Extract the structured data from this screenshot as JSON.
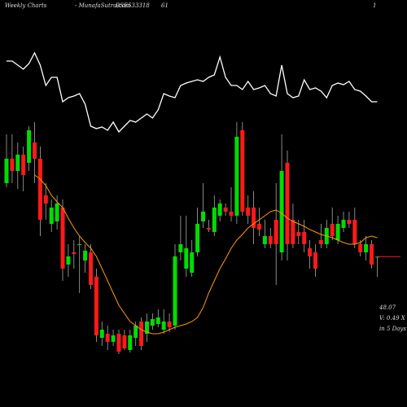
{
  "chart_data": {
    "type": "candlestick",
    "title": "Weekly Charts",
    "source": "- MunafaSutra.com",
    "symbol": "BSE533318",
    "annotations": [
      "61",
      "1"
    ],
    "info": [
      "48.07",
      "V: 0.49 X",
      "in 5 Days"
    ],
    "open": [
      57.1,
      60.1,
      58.6,
      60.6,
      59.6,
      62.1,
      60.1,
      55.6,
      52.1,
      52.4,
      54.1,
      47.1,
      48.6,
      49.6,
      47.6,
      48.6,
      45.6,
      38.1,
      38.6,
      37.6,
      38.6,
      38.4,
      36.6,
      38.1,
      40.1,
      38.6,
      39.6,
      39.8,
      39.1,
      40.1,
      39.6,
      48.6,
      46.6,
      46.1,
      48.6,
      52.4,
      51.6,
      51.1,
      53.1,
      54.1,
      53.6,
      53.1,
      63.6,
      54.1,
      54.1,
      52.1,
      49.6,
      50.6,
      52.6,
      48.6,
      59.6,
      52.6,
      51.1,
      51.1,
      49.1,
      48.6,
      50.1,
      49.6,
      52.1,
      50.1,
      51.6,
      52.6,
      52.6,
      49.6,
      48.6,
      49.6,
      48.07
    ],
    "high": [
      63.1,
      63.1,
      62.1,
      61.6,
      64.1,
      64.6,
      61.6,
      57.1,
      55.1,
      55.6,
      55.1,
      49.6,
      50.1,
      50.6,
      49.6,
      49.6,
      46.6,
      40.1,
      39.6,
      39.1,
      39.1,
      39.1,
      39.1,
      40.1,
      40.6,
      41.1,
      41.1,
      41.6,
      41.6,
      41.1,
      49.6,
      53.1,
      53.1,
      50.1,
      54.1,
      57.1,
      52.6,
      55.6,
      55.1,
      54.6,
      56.6,
      64.6,
      64.6,
      55.6,
      56.1,
      54.1,
      52.6,
      51.6,
      57.1,
      63.1,
      61.1,
      54.6,
      52.6,
      52.6,
      50.1,
      49.6,
      52.1,
      52.6,
      54.1,
      53.1,
      53.6,
      53.6,
      54.1,
      50.1,
      50.6,
      50.1,
      48.1
    ],
    "low": [
      56.6,
      57.1,
      56.4,
      56.1,
      58.6,
      57.1,
      50.6,
      52.6,
      51.1,
      51.4,
      45.1,
      45.6,
      46.6,
      43.6,
      46.1,
      44.1,
      37.6,
      37.1,
      36.6,
      37.1,
      36.1,
      36.6,
      36.3,
      37.1,
      36.6,
      37.6,
      39.1,
      39.4,
      38.6,
      38.8,
      39.1,
      47.6,
      45.6,
      45.6,
      48.1,
      51.6,
      51.1,
      50.6,
      52.4,
      53.1,
      52.4,
      52.1,
      53.1,
      52.1,
      49.6,
      50.6,
      49.1,
      49.1,
      44.6,
      47.6,
      47.6,
      49.1,
      49.6,
      48.6,
      46.6,
      45.6,
      49.1,
      49.1,
      50.1,
      49.6,
      51.1,
      51.6,
      49.1,
      48.1,
      47.6,
      46.6,
      45.6
    ],
    "close": [
      60.1,
      58.6,
      60.6,
      58.1,
      63.6,
      60.1,
      52.6,
      54.6,
      54.1,
      54.6,
      46.6,
      48.1,
      48.4,
      49.6,
      48.8,
      44.6,
      38.4,
      39.1,
      37.6,
      38.4,
      36.4,
      36.8,
      38.4,
      39.6,
      37.1,
      40.1,
      40.4,
      40.6,
      40.1,
      39.4,
      48.1,
      49.6,
      49.1,
      48.6,
      52.1,
      53.6,
      51.4,
      54.1,
      54.6,
      53.6,
      53.1,
      62.8,
      53.6,
      53.1,
      51.6,
      51.4,
      50.6,
      49.6,
      49.6,
      58.6,
      49.6,
      49.6,
      50.6,
      49.6,
      48.1,
      46.6,
      49.6,
      51.6,
      50.6,
      52.1,
      52.6,
      52.1,
      49.6,
      48.6,
      49.6,
      47.1,
      48.07
    ],
    "up_color": "#00dd00",
    "down_color": "#ff1a1a",
    "ylim": [
      36,
      66
    ],
    "moving_average": {
      "color": "#ff9900",
      "values": [
        null,
        null,
        null,
        null,
        null,
        58.1,
        57.6,
        56.8,
        55.6,
        54.8,
        54.1,
        52.8,
        51.6,
        50.6,
        49.8,
        49.1,
        48.1,
        46.6,
        45.1,
        43.6,
        42.1,
        41.1,
        40.1,
        39.6,
        39.1,
        38.8,
        38.6,
        38.6,
        38.8,
        39.1,
        39.4,
        39.6,
        39.8,
        40.1,
        40.6,
        41.8,
        43.6,
        45.1,
        46.6,
        47.8,
        49.1,
        50.1,
        50.8,
        51.6,
        52.1,
        52.6,
        53.1,
        53.6,
        53.8,
        53.4,
        52.8,
        52.4,
        52.1,
        51.8,
        51.4,
        51.1,
        50.8,
        50.6,
        50.4,
        50.1,
        49.8,
        49.6,
        49.6,
        49.8,
        50.4,
        50.6,
        50.4
      ]
    },
    "indicator": {
      "color": "#ffffff",
      "ylim": [
        0,
        110
      ],
      "values": [
        95,
        95,
        90,
        85,
        92,
        105,
        90,
        65,
        75,
        75,
        45,
        50,
        52,
        55,
        42,
        15,
        12,
        14,
        10,
        20,
        8,
        15,
        22,
        20,
        25,
        30,
        25,
        35,
        55,
        52,
        50,
        65,
        68,
        70,
        72,
        70,
        75,
        78,
        100,
        75,
        65,
        65,
        60,
        70,
        60,
        62,
        65,
        55,
        52,
        90,
        55,
        50,
        52,
        72,
        60,
        62,
        58,
        50,
        65,
        68,
        66,
        70,
        60,
        58,
        52,
        45,
        45
      ]
    }
  }
}
